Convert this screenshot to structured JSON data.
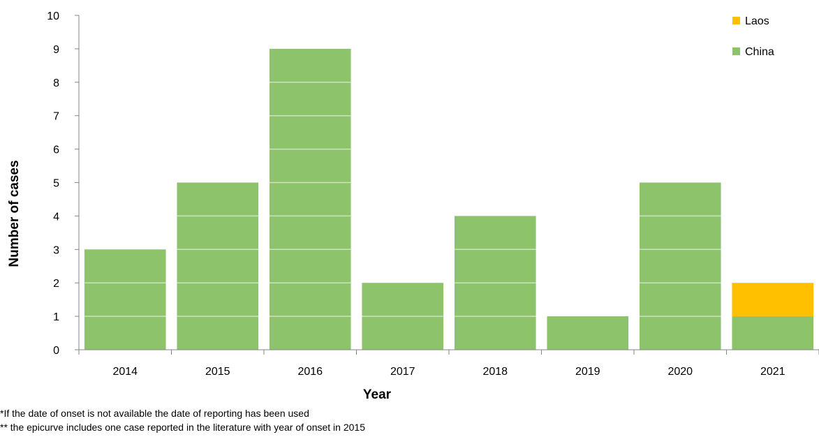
{
  "chart_data": {
    "type": "bar",
    "stacked": true,
    "title": "",
    "xlabel": "Year",
    "ylabel": "Number of cases",
    "ylim": [
      0,
      10
    ],
    "yticks": [
      0,
      1,
      2,
      3,
      4,
      5,
      6,
      7,
      8,
      9,
      10
    ],
    "categories": [
      "2014",
      "2015",
      "2016",
      "2017",
      "2018",
      "2019",
      "2020",
      "2021"
    ],
    "series": [
      {
        "name": "China",
        "color": "#8dc36a",
        "values": [
          3,
          5,
          9,
          2,
          4,
          1,
          5,
          1
        ]
      },
      {
        "name": "Laos",
        "color": "#ffc000",
        "values": [
          0,
          0,
          0,
          0,
          0,
          0,
          0,
          1
        ]
      }
    ],
    "legend_position": "top-right",
    "legend_order": [
      "Laos",
      "China"
    ],
    "grid": false
  },
  "footnotes": [
    "*If the date of onset is not available the date of reporting has been used",
    "** the epicurve includes one case reported in the literature with year of onset in 2015"
  ]
}
